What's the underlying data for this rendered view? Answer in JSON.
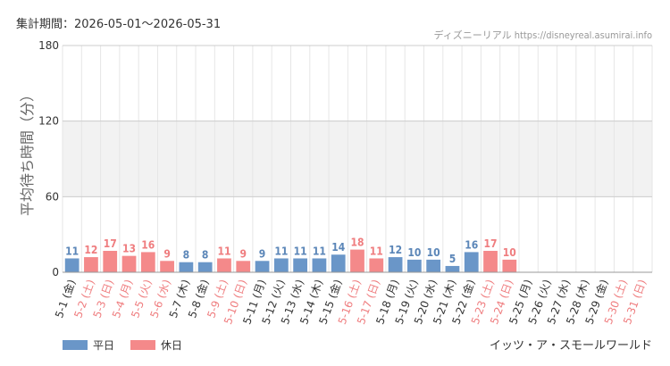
{
  "header": {
    "period": "集計期間：2026-05-01〜2026-05-31",
    "source": "ディズニーリアル https://disneyreal.asumirai.info"
  },
  "footer": {
    "attraction": "イッツ・ア・スモールワールド"
  },
  "colors": {
    "weekday": "#6a96c8",
    "holiday": "#f4898a",
    "weekday_text": "#5b86b8",
    "holiday_text": "#ef7d7f",
    "grid": "#e6e6e6",
    "band": "#f2f2f2"
  },
  "chart_data": {
    "type": "bar",
    "ylabel": "平均待ち時間（分）",
    "ylim": [
      0,
      180
    ],
    "yticks": [
      0,
      60,
      120,
      180
    ],
    "grid": true,
    "legend_position": "bottom-left",
    "categories": [
      "5-1 (金)",
      "5-2 (土)",
      "5-3 (日)",
      "5-4 (月)",
      "5-5 (火)",
      "5-6 (水)",
      "5-7 (木)",
      "5-8 (金)",
      "5-9 (土)",
      "5-10 (日)",
      "5-11 (月)",
      "5-12 (火)",
      "5-13 (水)",
      "5-14 (木)",
      "5-15 (金)",
      "5-16 (土)",
      "5-17 (日)",
      "5-18 (月)",
      "5-19 (火)",
      "5-20 (水)",
      "5-21 (木)",
      "5-22 (金)",
      "5-23 (土)",
      "5-24 (日)",
      "5-25 (月)",
      "5-26 (火)",
      "5-27 (水)",
      "5-28 (木)",
      "5-29 (金)",
      "5-30 (土)",
      "5-31 (日)"
    ],
    "values": [
      11,
      12,
      17,
      13,
      16,
      9,
      8,
      8,
      11,
      9,
      9,
      11,
      11,
      11,
      14,
      18,
      11,
      12,
      10,
      10,
      5,
      16,
      17,
      10,
      null,
      null,
      null,
      null,
      null,
      null,
      null
    ],
    "day_type": [
      "weekday",
      "holiday",
      "holiday",
      "holiday",
      "holiday",
      "holiday",
      "weekday",
      "weekday",
      "holiday",
      "holiday",
      "weekday",
      "weekday",
      "weekday",
      "weekday",
      "weekday",
      "holiday",
      "holiday",
      "weekday",
      "weekday",
      "weekday",
      "weekday",
      "weekday",
      "holiday",
      "holiday",
      "weekday",
      "weekday",
      "weekday",
      "weekday",
      "weekday",
      "holiday",
      "holiday"
    ],
    "series": [
      {
        "name": "平日",
        "key": "weekday"
      },
      {
        "name": "休日",
        "key": "holiday"
      }
    ]
  }
}
